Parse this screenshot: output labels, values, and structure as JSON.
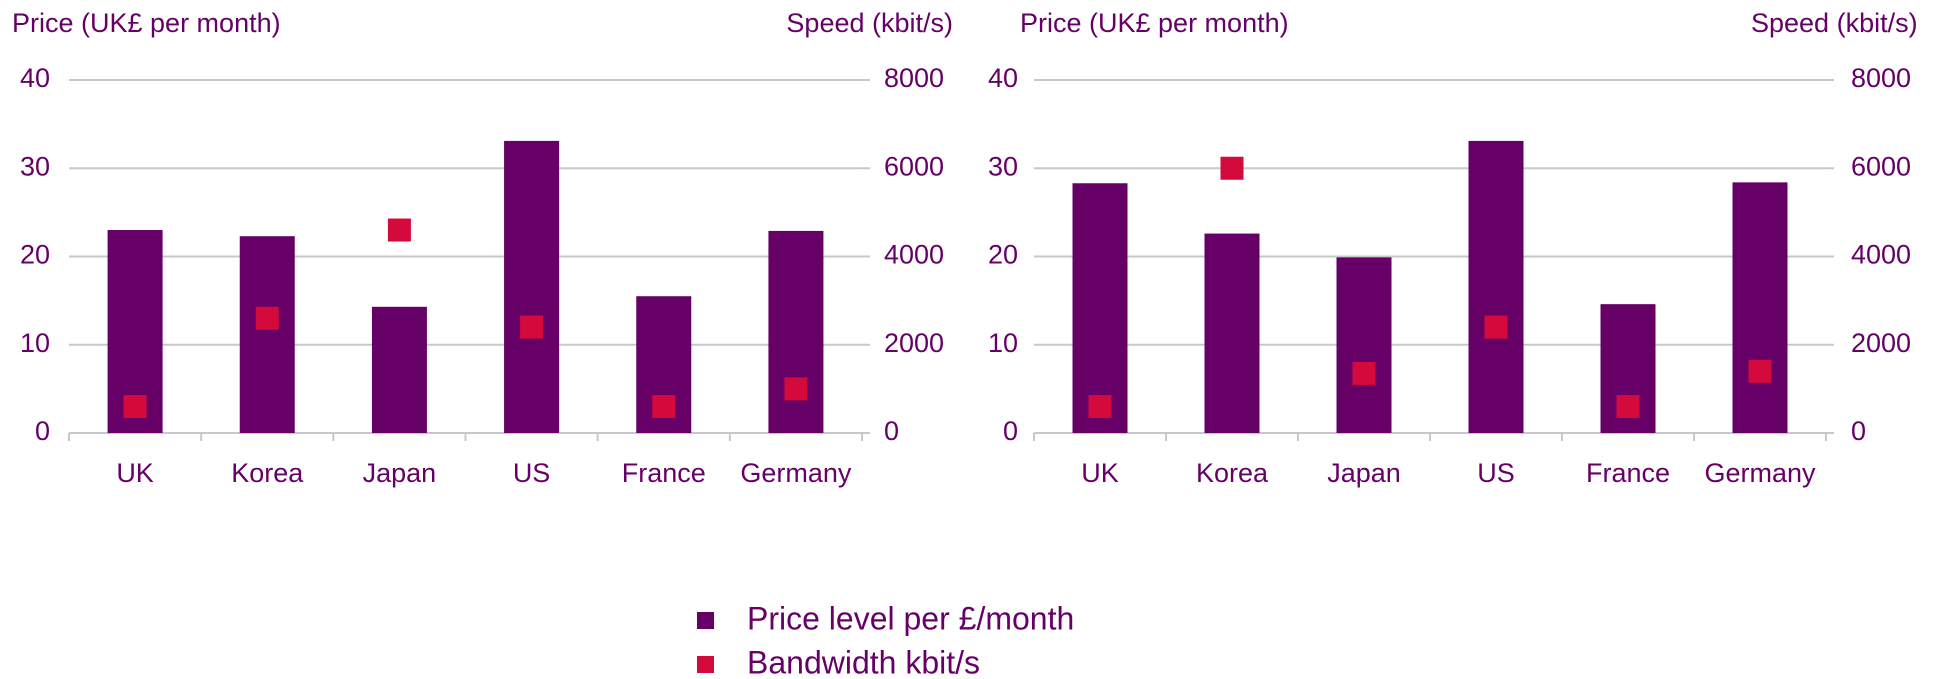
{
  "chart_data": [
    {
      "type": "bar",
      "ylabel": "Price (UK£ per month)",
      "y2label": "Speed (kbit/s)",
      "categories": [
        "UK",
        "Korea",
        "Japan",
        "US",
        "France",
        "Germany"
      ],
      "series": [
        {
          "name": "Price level per £/month",
          "color": "#660066",
          "values": [
            23.0,
            22.3,
            14.3,
            33.1,
            15.5,
            22.9
          ]
        },
        {
          "name": "Bandwidth kbit/s",
          "color": "#d4093c",
          "axis": "y2",
          "values": [
            600,
            2600,
            4600,
            2400,
            600,
            1000
          ]
        }
      ],
      "ylim": [
        0,
        40
      ],
      "yticks": [
        0,
        10,
        20,
        30,
        40
      ],
      "y2lim": [
        0,
        8000
      ],
      "y2ticks": [
        0,
        2000,
        4000,
        6000,
        8000
      ],
      "grid": true
    },
    {
      "type": "bar",
      "ylabel": "Price (UK£ per month)",
      "y2label": "Speed (kbit/s)",
      "categories": [
        "UK",
        "Korea",
        "Japan",
        "US",
        "France",
        "Germany"
      ],
      "series": [
        {
          "color": "#660066",
          "values": [
            28.3,
            22.6,
            19.9,
            33.1,
            14.6,
            28.4
          ]
        },
        {
          "color": "#d4093c",
          "axis": "y2",
          "values": [
            600,
            6000,
            1350,
            2400,
            600,
            1400
          ]
        }
      ],
      "ylim": [
        0,
        40
      ],
      "yticks": [
        0,
        10,
        20,
        30,
        40
      ],
      "y2lim": [
        0,
        8000
      ],
      "y2ticks": [
        0,
        2000,
        4000,
        6000,
        8000
      ],
      "grid": true
    }
  ]
}
